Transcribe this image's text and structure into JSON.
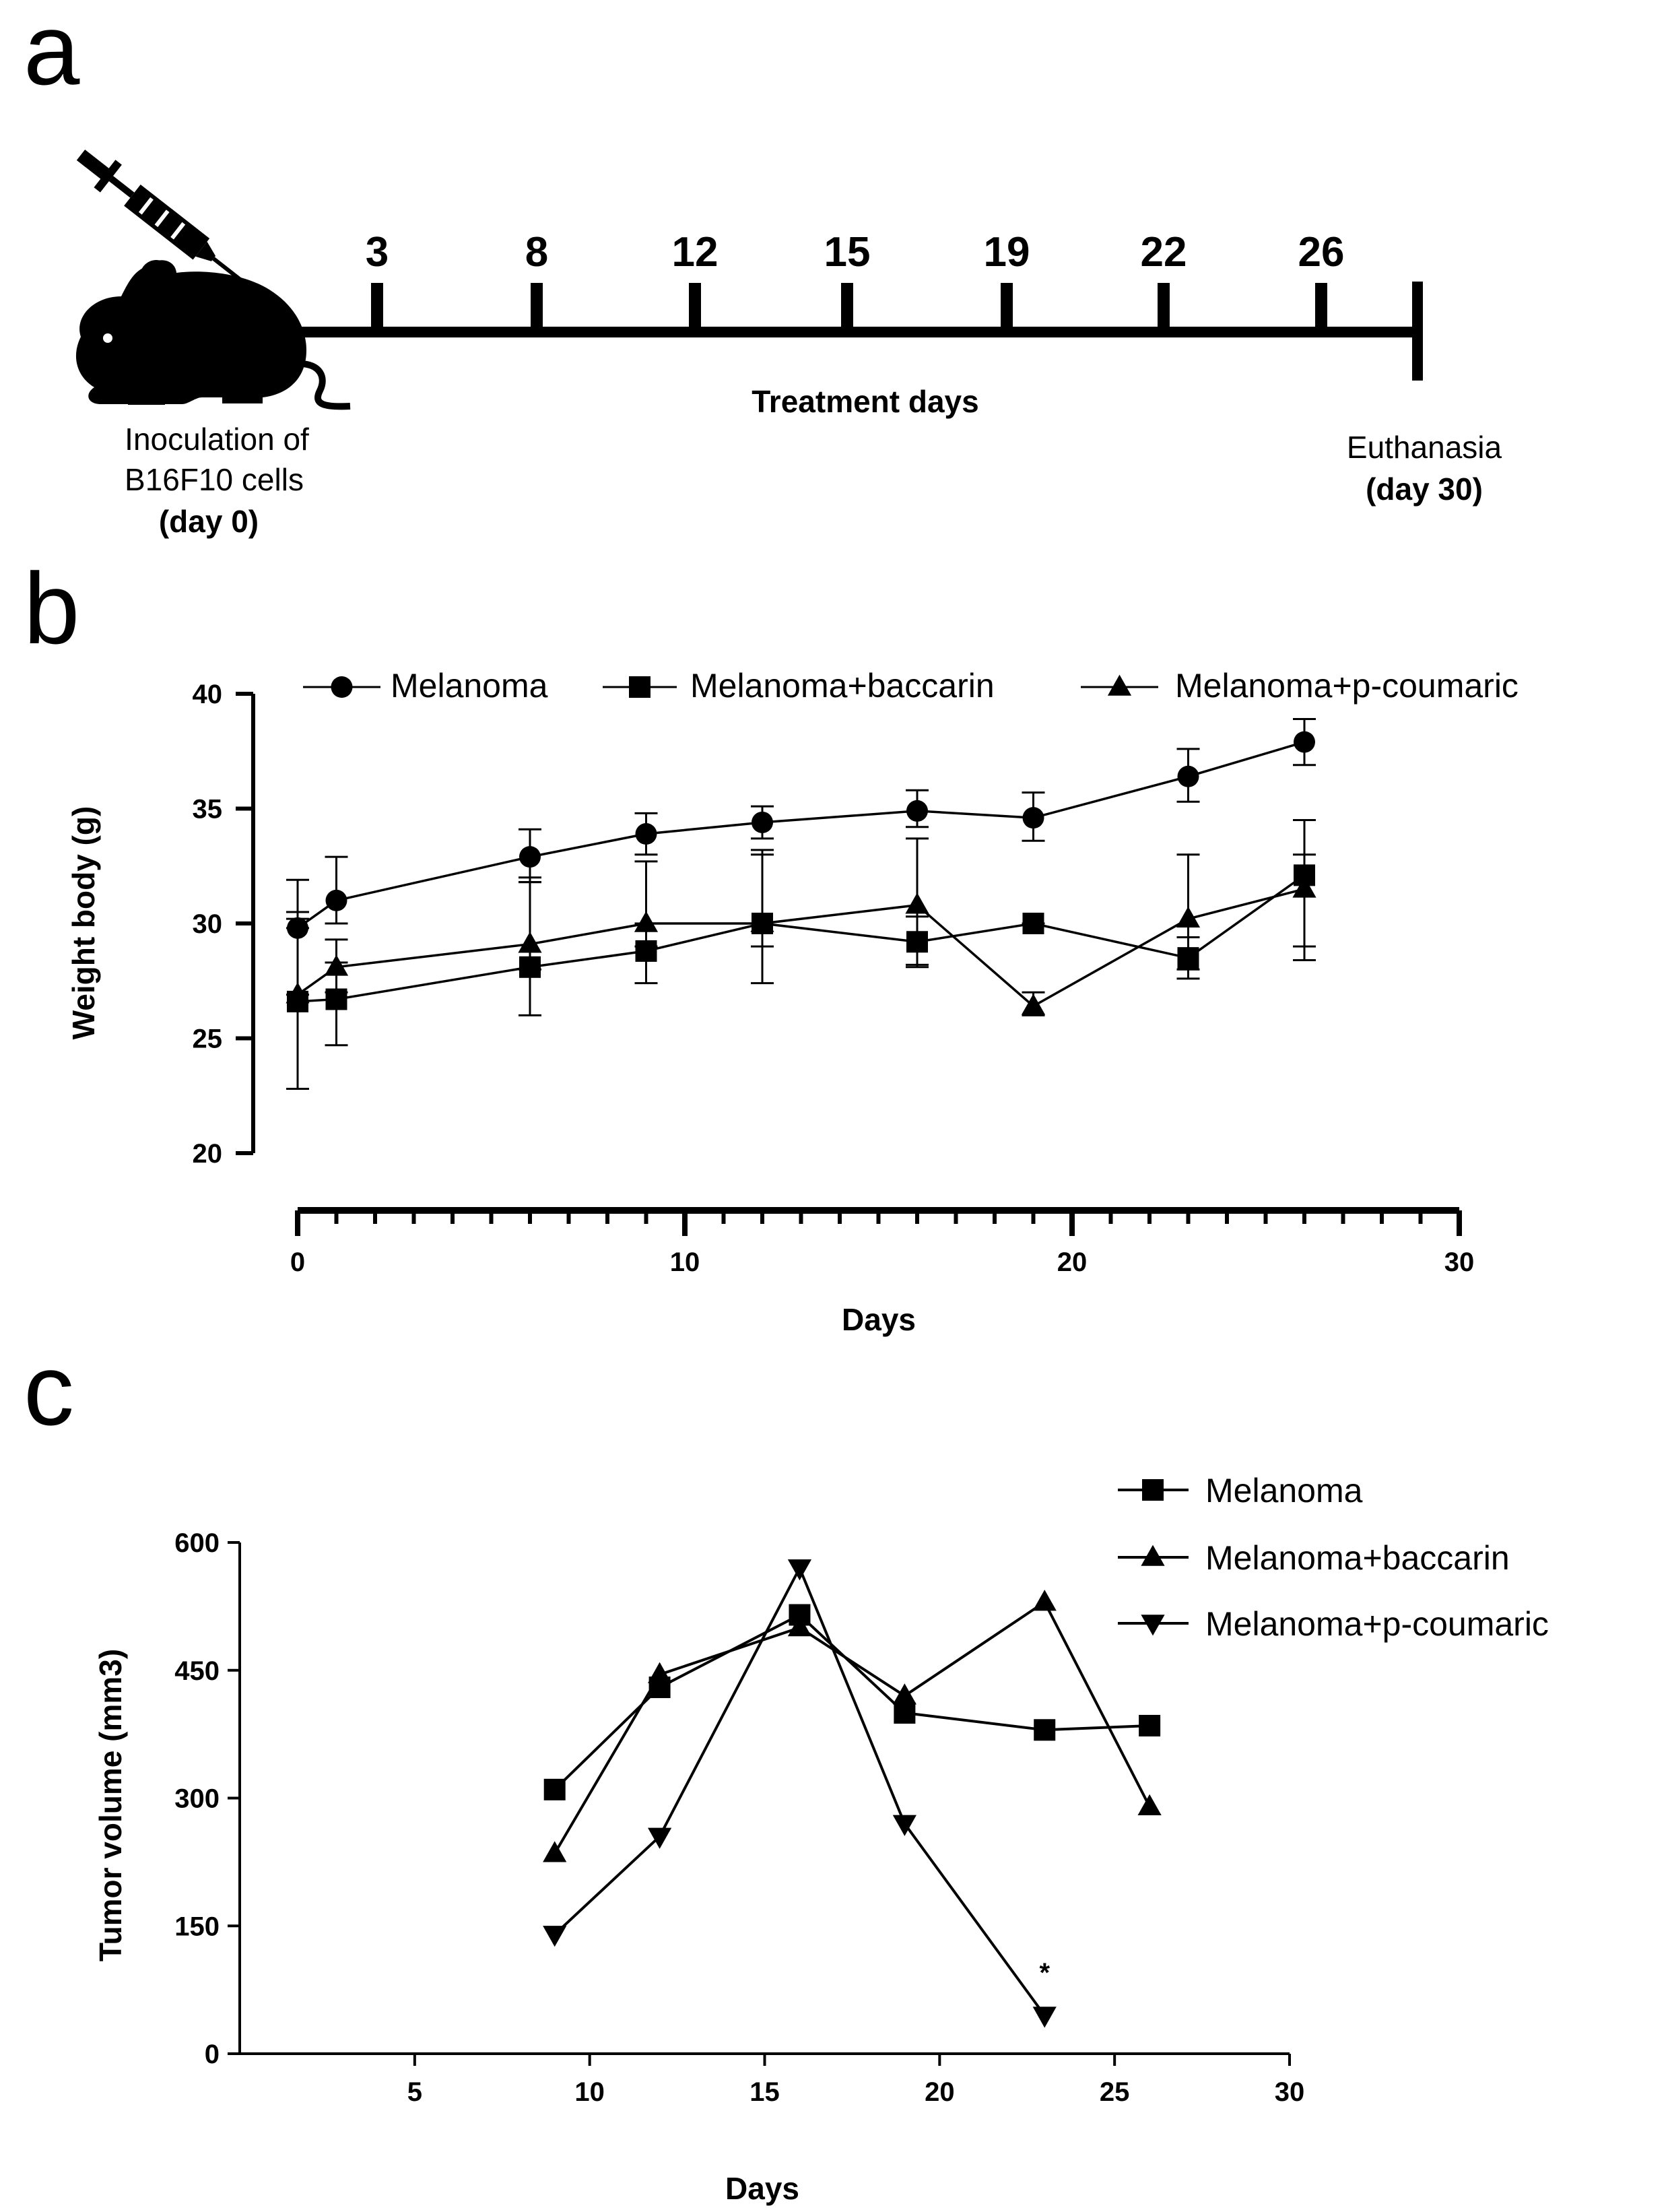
{
  "panel_labels": {
    "a": "a",
    "b": "b",
    "c": "c"
  },
  "timeline": {
    "days": [
      "3",
      "8",
      "12",
      "15",
      "19",
      "22",
      "26"
    ],
    "axis_label": "Treatment days",
    "start_label_line1": "Inoculation of",
    "start_label_line2": "B16F10 cells",
    "start_label_line3": "(day 0)",
    "end_label_line1": "Euthanasia",
    "end_label_line2": "(day 30)",
    "icons": [
      "mouse-icon",
      "syringe-icon"
    ]
  },
  "chart_data": [
    {
      "type": "line",
      "panel": "b",
      "title": "",
      "xlabel": "Days",
      "ylabel": "Weight body (g)",
      "xlim": [
        0,
        30
      ],
      "ylim": [
        20,
        40
      ],
      "xticks": [
        0,
        10,
        20,
        30
      ],
      "xtick_labels": [
        "0",
        "10",
        "20",
        "30"
      ],
      "yticks": [
        20,
        25,
        30,
        35,
        40
      ],
      "ytick_labels": [
        "20",
        "25",
        "30",
        "35",
        "40"
      ],
      "legend_position": "top",
      "series": [
        {
          "name": "Melanoma",
          "marker": "circle",
          "x": [
            0,
            1,
            6,
            9,
            12,
            16,
            19,
            23,
            26
          ],
          "y": [
            29.8,
            31.0,
            32.9,
            33.9,
            34.4,
            34.9,
            34.6,
            36.4,
            37.9
          ],
          "err_low": [
            29.8,
            30.0,
            31.8,
            33.0,
            33.7,
            34.2,
            33.6,
            35.3,
            36.9
          ],
          "err_high": [
            31.9,
            32.9,
            34.1,
            34.8,
            35.1,
            35.8,
            35.7,
            37.6,
            38.9
          ]
        },
        {
          "name": "Melanoma+baccarin",
          "marker": "square",
          "x": [
            0,
            1,
            6,
            9,
            12,
            16,
            19,
            23,
            26
          ],
          "y": [
            26.6,
            26.7,
            28.1,
            28.8,
            30.0,
            29.2,
            30.0,
            28.5,
            32.1
          ],
          "err_low": [
            22.8,
            24.7,
            26.0,
            27.4,
            27.4,
            28.1,
            30.0,
            27.6,
            28.4
          ],
          "err_high": [
            30.2,
            28.3,
            31.8,
            30.0,
            33.2,
            30.3,
            30.0,
            29.4,
            34.5
          ]
        },
        {
          "name": "Melanoma+p-coumaric",
          "marker": "triangle",
          "x": [
            0,
            1,
            6,
            9,
            12,
            16,
            19,
            23,
            26
          ],
          "y": [
            26.9,
            28.1,
            29.1,
            30.0,
            30.0,
            30.8,
            26.4,
            30.2,
            31.5
          ],
          "err_low": [
            26.9,
            27.0,
            28.0,
            29.0,
            29.0,
            28.2,
            26.0,
            28.0,
            29.0
          ],
          "err_high": [
            30.5,
            29.3,
            32.0,
            32.7,
            33.0,
            33.7,
            27.0,
            33.0,
            33.0
          ]
        }
      ]
    },
    {
      "type": "line",
      "panel": "c",
      "title": "",
      "xlabel": "Days",
      "ylabel": "Tumor volume (mm3)",
      "xlim": [
        0,
        30
      ],
      "ylim": [
        0,
        600
      ],
      "xticks": [
        5,
        10,
        15,
        20,
        25,
        30
      ],
      "xtick_labels": [
        "5",
        "10",
        "15",
        "20",
        "25",
        "30"
      ],
      "yticks": [
        0,
        150,
        300,
        450,
        600
      ],
      "ytick_labels": [
        "0",
        "150",
        "300",
        "450",
        "600"
      ],
      "legend_position": "top-right",
      "series": [
        {
          "name": "Melanoma",
          "marker": "square",
          "x": [
            9,
            12,
            16,
            19,
            23,
            26
          ],
          "y": [
            310,
            430,
            515,
            400,
            380,
            385
          ]
        },
        {
          "name": "Melanoma+baccarin",
          "marker": "triangle",
          "x": [
            9,
            12,
            16,
            19,
            23,
            26
          ],
          "y": [
            235,
            445,
            500,
            420,
            530,
            290
          ]
        },
        {
          "name": "Melanoma+p-coumaric",
          "marker": "triangle-down",
          "x": [
            9,
            12,
            16,
            19,
            23
          ],
          "y": [
            140,
            255,
            570,
            270,
            45
          ]
        }
      ],
      "annotations": [
        {
          "x": 23,
          "y": 45,
          "text": "*"
        }
      ]
    }
  ]
}
